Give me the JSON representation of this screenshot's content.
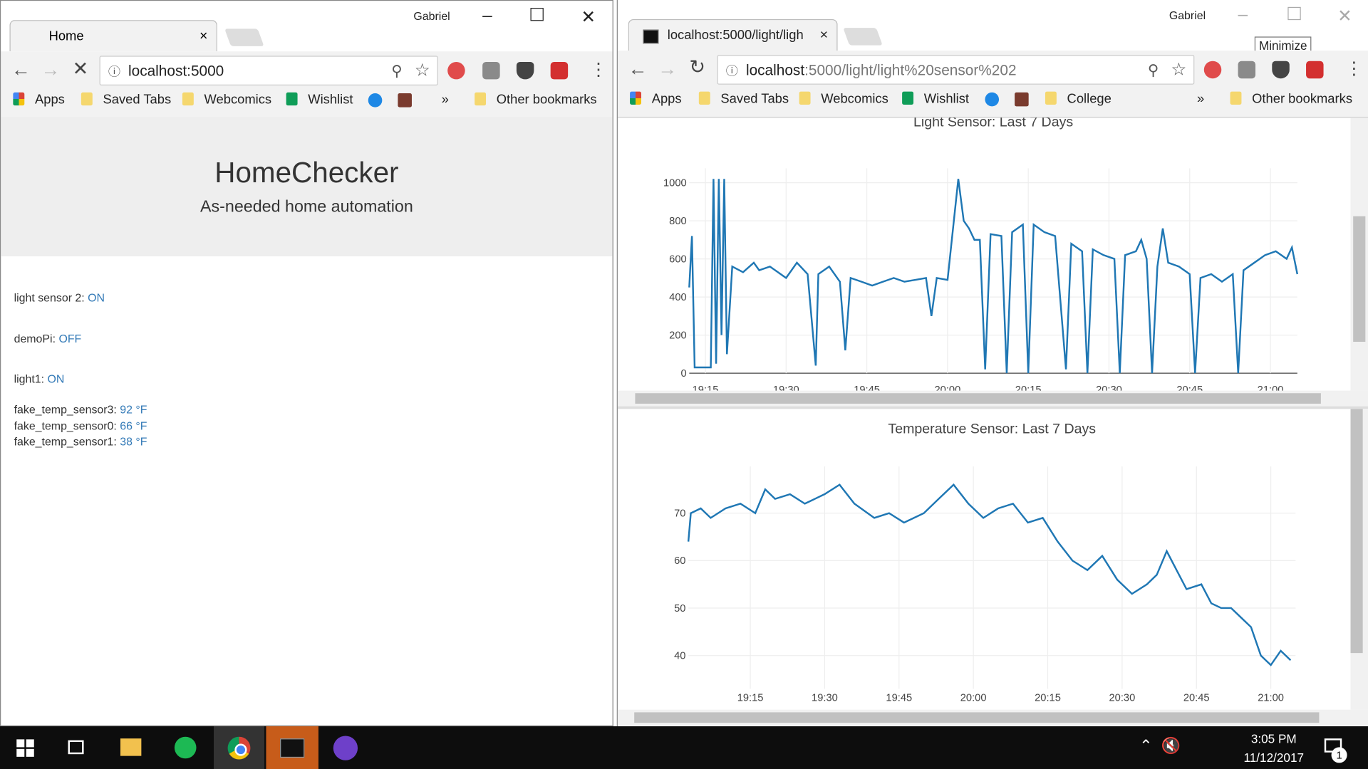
{
  "left_window": {
    "user": "Gabriel",
    "tab": "Home",
    "url": "localhost:5000",
    "bookmarks": [
      "Apps",
      "Saved Tabs",
      "Webcomics",
      "Wishlist"
    ],
    "more": "»",
    "other_bookmarks": "Other bookmarks",
    "page": {
      "title": "HomeChecker",
      "subtitle": "As-needed home automation",
      "devices": [
        {
          "name": "light sensor 2:",
          "state": "ON"
        },
        {
          "name": "demoPi:",
          "state": "OFF"
        },
        {
          "name": "light1:",
          "state": "ON"
        }
      ],
      "sensors": [
        {
          "name": "fake_temp_sensor3:",
          "value": "92 °F"
        },
        {
          "name": "fake_temp_sensor0:",
          "value": "66 °F"
        },
        {
          "name": "fake_temp_sensor1:",
          "value": "38 °F"
        }
      ]
    }
  },
  "right_window": {
    "user": "Gabriel",
    "tab": "localhost:5000/light/ligh",
    "tooltip": "Minimize",
    "url_host": "localhost",
    "url_rest": ":5000/light/light%20sensor%202",
    "bookmarks": [
      "Apps",
      "Saved Tabs",
      "Webcomics",
      "Wishlist",
      "College"
    ],
    "more": "»",
    "other_bookmarks": "Other bookmarks"
  },
  "chart_data": [
    {
      "type": "line",
      "title": "Light Sensor: Last 7 Days",
      "color": "#1f77b4",
      "grid": true,
      "x": [
        1152,
        1152.5,
        1153,
        1156,
        1156.5,
        1157,
        1157.5,
        1158,
        1158.5,
        1159,
        1160,
        1162,
        1164,
        1165,
        1167,
        1170,
        1172,
        1174,
        1175.5,
        1176,
        1178,
        1180,
        1181,
        1182,
        1184,
        1186,
        1188,
        1190,
        1192,
        1194,
        1196,
        1197,
        1198,
        1200,
        1202,
        1203,
        1204,
        1205,
        1206,
        1207,
        1208,
        1210,
        1211,
        1212,
        1214,
        1215,
        1216,
        1218,
        1220,
        1222,
        1223,
        1225,
        1226,
        1227,
        1229,
        1231,
        1232,
        1233,
        1235,
        1236,
        1237,
        1238,
        1239,
        1240,
        1241,
        1243,
        1245,
        1246,
        1247,
        1249,
        1251,
        1253,
        1254,
        1255,
        1257,
        1259,
        1261,
        1263,
        1264,
        1265
      ],
      "values": [
        450,
        720,
        30,
        30,
        1020,
        50,
        1020,
        200,
        1020,
        100,
        560,
        530,
        580,
        540,
        560,
        500,
        580,
        520,
        40,
        520,
        560,
        480,
        120,
        500,
        480,
        460,
        480,
        500,
        480,
        490,
        500,
        300,
        500,
        490,
        1020,
        800,
        760,
        700,
        700,
        20,
        730,
        720,
        0,
        740,
        780,
        0,
        780,
        740,
        720,
        20,
        680,
        640,
        0,
        650,
        620,
        600,
        0,
        620,
        640,
        700,
        600,
        0,
        560,
        760,
        580,
        560,
        520,
        0,
        500,
        520,
        480,
        520,
        0,
        540,
        580,
        620,
        640,
        600,
        660,
        520
      ],
      "xlim": [
        1152,
        1265
      ],
      "ylim": [
        0,
        1030
      ],
      "xticks": [
        {
          "value": 1155,
          "label": "19:15"
        },
        {
          "value": 1170,
          "label": "19:30"
        },
        {
          "value": 1185,
          "label": "19:45"
        },
        {
          "value": 1200,
          "label": "20:00"
        },
        {
          "value": 1215,
          "label": "20:15"
        },
        {
          "value": 1230,
          "label": "20:30"
        },
        {
          "value": 1245,
          "label": "20:45"
        },
        {
          "value": 1260,
          "label": "21:00"
        }
      ],
      "yticks": [
        0,
        200,
        400,
        600,
        800,
        1000
      ]
    },
    {
      "type": "line",
      "title": "Temperature Sensor: Last 7 Days",
      "color": "#1f77b4",
      "grid": true,
      "x": [
        1142.5,
        1143,
        1145,
        1147,
        1150,
        1153,
        1156,
        1158,
        1160,
        1163,
        1166,
        1170,
        1173,
        1176,
        1180,
        1183,
        1186,
        1190,
        1193,
        1196,
        1199,
        1202,
        1205,
        1208,
        1211,
        1214,
        1217,
        1220,
        1223,
        1226,
        1229,
        1232,
        1235,
        1237,
        1239,
        1241,
        1243,
        1246,
        1248,
        1250,
        1252,
        1254,
        1256,
        1258,
        1260,
        1262,
        1264
      ],
      "values": [
        64,
        70,
        71,
        69,
        71,
        72,
        70,
        75,
        73,
        74,
        72,
        74,
        76,
        72,
        69,
        70,
        68,
        70,
        73,
        76,
        72,
        69,
        71,
        72,
        68,
        69,
        64,
        60,
        58,
        61,
        56,
        53,
        55,
        57,
        62,
        58,
        54,
        55,
        51,
        50,
        50,
        48,
        46,
        40,
        38,
        41,
        39
      ],
      "xlim": [
        1142.5,
        1265
      ],
      "ylim": [
        33,
        78
      ],
      "xticks": [
        {
          "value": 1155,
          "label": "19:15"
        },
        {
          "value": 1170,
          "label": "19:30"
        },
        {
          "value": 1185,
          "label": "19:45"
        },
        {
          "value": 1200,
          "label": "20:00"
        },
        {
          "value": 1215,
          "label": "20:15"
        },
        {
          "value": 1230,
          "label": "20:30"
        },
        {
          "value": 1245,
          "label": "20:45"
        },
        {
          "value": 1260,
          "label": "21:00"
        }
      ],
      "yticks": [
        40,
        50,
        60,
        70
      ]
    }
  ],
  "taskbar": {
    "time": "3:05 PM",
    "date": "11/12/2017",
    "notifications": "1"
  }
}
